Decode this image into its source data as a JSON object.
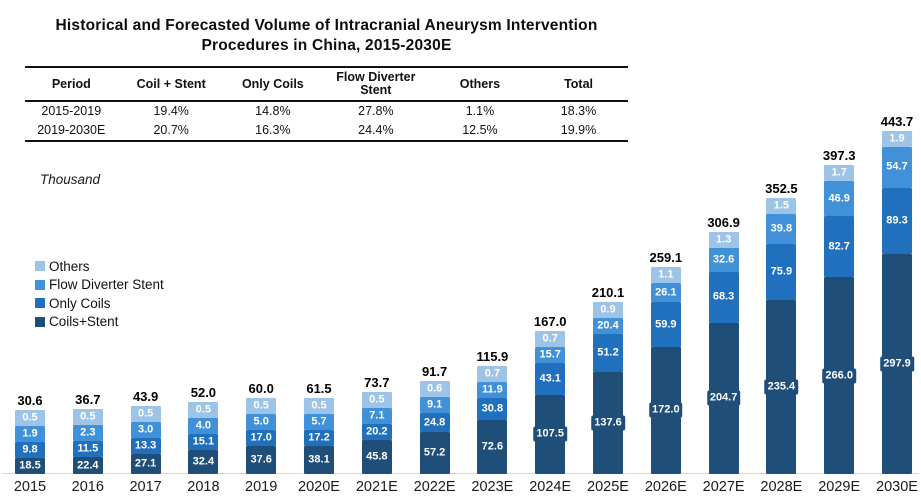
{
  "title": {
    "line1": "Historical and Forecasted Volume of Intracranial Aneurysm Intervention",
    "line2": "Procedures in China, 2015-2030E"
  },
  "table": {
    "columns": [
      "Period",
      "Coil + Stent",
      "Only Coils",
      "Flow Diverter Stent",
      "Others",
      "Total"
    ],
    "rows": [
      [
        "2015-2019",
        "19.4%",
        "14.8%",
        "27.8%",
        "1.1%",
        "18.3%"
      ],
      [
        "2019-2030E",
        "20.7%",
        "16.3%",
        "24.4%",
        "12.5%",
        "19.9%"
      ]
    ]
  },
  "unit_label": "Thousand",
  "legend": [
    {
      "label": "Others",
      "color": "#9DC3E6"
    },
    {
      "label": "Flow Diverter Stent",
      "color": "#4191D9"
    },
    {
      "label": "Only Coils",
      "color": "#2170BE"
    },
    {
      "label": "Coils+Stent",
      "color": "#1F4E79"
    }
  ],
  "chart_data": {
    "type": "bar",
    "subtype": "stacked",
    "title": "Historical and Forecasted Volume of Intracranial Aneurysm Intervention Procedures in China, 2015-2030E",
    "ylabel": "Thousand",
    "legend_position": "left",
    "grid": false,
    "categories": [
      "2015",
      "2016",
      "2017",
      "2018",
      "2019",
      "2020E",
      "2021E",
      "2022E",
      "2023E",
      "2024E",
      "2025E",
      "2026E",
      "2027E",
      "2028E",
      "2029E",
      "2030E"
    ],
    "totals": [
      30.6,
      36.7,
      43.9,
      52.0,
      60.0,
      61.5,
      73.7,
      91.7,
      115.9,
      167.0,
      210.1,
      259.1,
      306.9,
      352.5,
      397.3,
      443.7
    ],
    "series": [
      {
        "name": "Others",
        "color": "#9DC3E6",
        "values": [
          0.5,
          0.5,
          0.5,
          0.5,
          0.5,
          0.5,
          0.5,
          0.6,
          0.7,
          0.7,
          0.9,
          1.1,
          1.3,
          1.5,
          1.7,
          1.9
        ]
      },
      {
        "name": "Flow Diverter Stent",
        "color": "#4191D9",
        "values": [
          1.9,
          2.3,
          3.0,
          4.0,
          5.0,
          5.7,
          7.1,
          9.1,
          11.9,
          15.7,
          20.4,
          26.1,
          32.6,
          39.8,
          46.9,
          54.7
        ]
      },
      {
        "name": "Only Coils",
        "color": "#2170BE",
        "values": [
          9.8,
          11.5,
          13.3,
          15.1,
          17.0,
          17.2,
          20.2,
          24.8,
          30.8,
          43.1,
          51.2,
          59.9,
          68.3,
          75.9,
          82.7,
          89.3
        ]
      },
      {
        "name": "Coils+Stent",
        "color": "#1F4E79",
        "values": [
          18.5,
          22.4,
          27.1,
          32.4,
          37.6,
          38.1,
          45.8,
          57.2,
          72.6,
          107.5,
          137.6,
          172.0,
          204.7,
          235.4,
          266.0,
          297.9
        ]
      }
    ]
  }
}
